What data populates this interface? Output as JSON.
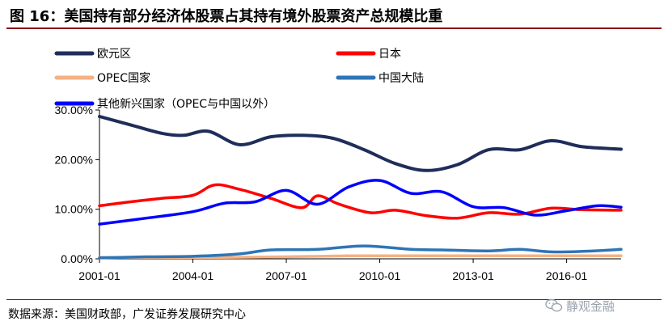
{
  "header": {
    "title": "图 16：美国持有部分经济体股票占其持有境外股票资产总规模比重"
  },
  "footer": {
    "source": "数据来源：美国财政部，广发证券发展研究中心",
    "watermark": "静观金融",
    "watermark_icon": "wechat-icon"
  },
  "chart_data": {
    "type": "line",
    "title": "图 16：美国持有部分经济体股票占其持有境外股票资产总规模比重",
    "xlabel": "",
    "ylabel": "",
    "x_ticks": [
      "2001-01",
      "2004-01",
      "2007-01",
      "2010-01",
      "2013-01",
      "2016-01"
    ],
    "x_range": [
      2001.0,
      2017.75
    ],
    "ylim": [
      0,
      30
    ],
    "y_ticks": [
      "0.00%",
      "10.00%",
      "20.00%",
      "30.00%"
    ],
    "y_tick_values": [
      0,
      10,
      20,
      30
    ],
    "grid": false,
    "legend_position": "top",
    "series": [
      {
        "name": "欧元区",
        "color": "#1f2d5a",
        "x": [
          2001.0,
          2002.0,
          2003.0,
          2003.7,
          2004.5,
          2005.5,
          2006.5,
          2007.5,
          2008.5,
          2009.5,
          2010.5,
          2011.5,
          2012.5,
          2013.5,
          2014.5,
          2015.5,
          2016.5,
          2017.75
        ],
        "values": [
          28.7,
          27.0,
          25.3,
          24.9,
          25.7,
          23.0,
          24.6,
          24.9,
          24.3,
          22.0,
          19.2,
          17.8,
          19.0,
          22.0,
          22.0,
          23.8,
          22.6,
          22.1
        ]
      },
      {
        "name": "日本",
        "color": "#ff0000",
        "x": [
          2001.0,
          2002.0,
          2003.0,
          2004.0,
          2004.7,
          2005.5,
          2006.5,
          2007.5,
          2008.0,
          2008.7,
          2009.7,
          2010.5,
          2011.5,
          2012.5,
          2013.5,
          2014.5,
          2015.5,
          2016.5,
          2017.75
        ],
        "values": [
          10.7,
          11.5,
          12.2,
          12.8,
          14.9,
          14.0,
          12.2,
          10.3,
          12.7,
          11.0,
          9.3,
          9.8,
          8.7,
          8.2,
          9.3,
          9.0,
          10.2,
          9.9,
          9.8
        ]
      },
      {
        "name": "OPEC国家",
        "color": "#f4b183",
        "x": [
          2001.0,
          2003.0,
          2005.0,
          2007.0,
          2009.0,
          2011.0,
          2013.0,
          2015.0,
          2017.75
        ],
        "values": [
          0.3,
          0.3,
          0.3,
          0.4,
          0.6,
          0.6,
          0.6,
          0.6,
          0.6
        ]
      },
      {
        "name": "中国大陆",
        "color": "#2e75b6",
        "x": [
          2001.0,
          2002.5,
          2004.0,
          2005.5,
          2006.5,
          2008.0,
          2009.5,
          2011.0,
          2012.0,
          2013.5,
          2014.5,
          2015.5,
          2016.5,
          2017.75
        ],
        "values": [
          0.2,
          0.4,
          0.5,
          1.0,
          1.8,
          1.9,
          2.6,
          1.9,
          1.8,
          1.6,
          1.9,
          1.4,
          1.5,
          1.9
        ]
      },
      {
        "name": "其他新兴国家（OPEC与中国以外）",
        "color": "#0000ff",
        "x": [
          2001.0,
          2002.5,
          2004.0,
          2005.0,
          2006.0,
          2007.0,
          2008.0,
          2009.0,
          2010.0,
          2011.0,
          2012.0,
          2013.0,
          2014.0,
          2015.0,
          2016.0,
          2017.0,
          2017.75
        ],
        "values": [
          7.0,
          8.2,
          9.5,
          11.2,
          11.5,
          13.8,
          11.0,
          14.5,
          15.8,
          13.2,
          13.5,
          10.5,
          10.3,
          8.8,
          9.7,
          10.7,
          10.4
        ]
      }
    ]
  }
}
